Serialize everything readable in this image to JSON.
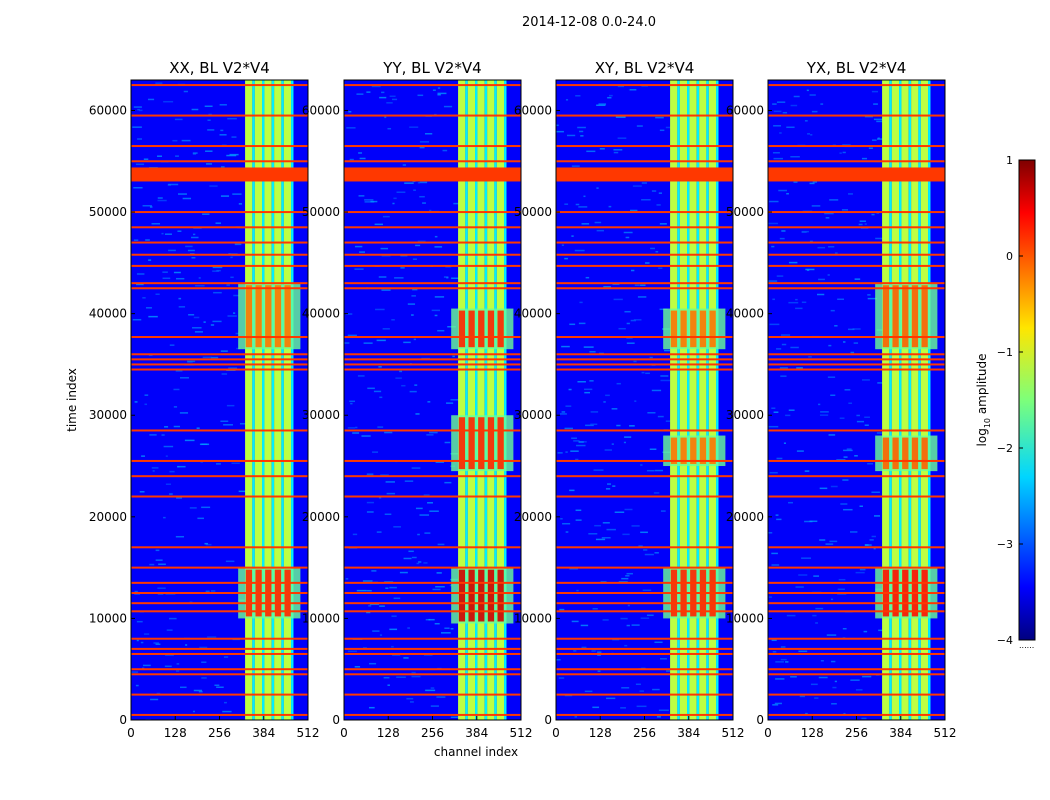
{
  "figure": {
    "suptitle": "2014-12-08 0.0-24.0",
    "xlabel": "channel index",
    "ylabel": "time index"
  },
  "colorbar": {
    "label_prefix": "log",
    "label_sub": "10",
    "label_suffix": " amplitude",
    "ticks": [
      "1",
      "0",
      "−1",
      "−2",
      "−3",
      "−4"
    ],
    "tick_values": [
      1,
      0,
      -1,
      -2,
      -3,
      -4
    ],
    "range": [
      -4,
      1
    ],
    "extra": "......"
  },
  "chart_data": {
    "type": "heatmap",
    "colormap": "jet",
    "xlim": [
      0,
      512
    ],
    "ylim": [
      0,
      63000
    ],
    "xticks": [
      0,
      128,
      256,
      384,
      512
    ],
    "yticks": [
      0,
      10000,
      20000,
      30000,
      40000,
      50000,
      60000
    ],
    "panels": [
      {
        "title": "XX, BL V2*V4",
        "strong_regions": [
          [
            10000,
            15000
          ],
          [
            36500,
            43000
          ]
        ],
        "peak": 0.2
      },
      {
        "title": "YY, BL V2*V4",
        "strong_regions": [
          [
            9500,
            15000
          ],
          [
            36500,
            40500
          ],
          [
            24500,
            30000
          ]
        ],
        "peak": 0.6
      },
      {
        "title": "XY, BL V2*V4",
        "strong_regions": [
          [
            10000,
            15000
          ],
          [
            36500,
            40500
          ],
          [
            25000,
            28000
          ]
        ],
        "peak": 0.2
      },
      {
        "title": "YX, BL V2*V4",
        "strong_regions": [
          [
            10000,
            15000
          ],
          [
            36500,
            43000
          ],
          [
            24500,
            28000
          ]
        ],
        "peak": 0.3
      }
    ],
    "band_channels": [
      [
        330,
        470
      ]
    ],
    "flagged_rows": [
      62500,
      59500,
      56500,
      55000,
      53700,
      53200,
      50000,
      48500,
      47000,
      45800,
      44700,
      43000,
      42500,
      37700,
      36000,
      35500,
      35000,
      34500,
      28500,
      25500,
      24000,
      22000,
      17000,
      15000,
      13500,
      12500,
      11500,
      10700,
      8000,
      7000,
      6500,
      5000,
      4500,
      2500,
      500
    ]
  }
}
